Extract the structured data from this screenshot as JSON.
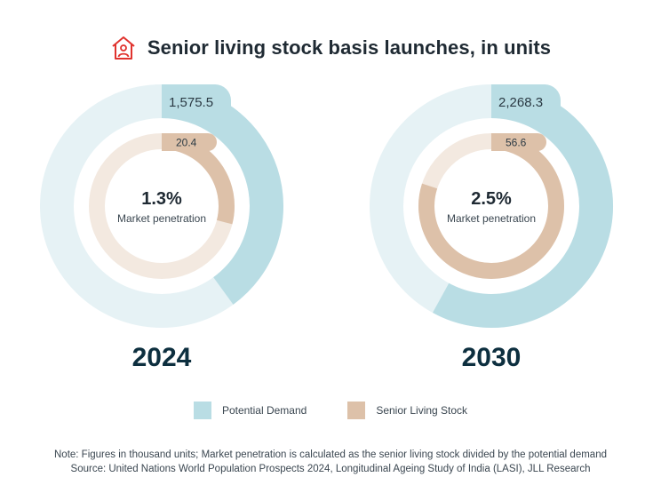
{
  "title": "Senior living stock basis launches, in units",
  "colors": {
    "demand": "#b9dde4",
    "demand_light": "#e6f2f5",
    "stock": "#ddc1a9",
    "stock_light": "#f3e9e0",
    "accent_icon": "#e0332e",
    "year_text": "#0d2f3f"
  },
  "icon": "house-person-icon",
  "legend": {
    "demand": "Potential Demand",
    "stock": "Senior Living Stock"
  },
  "notes": {
    "line1": "Note: Figures in thousand units; Market penetration is calculated as the senior living stock divided by the potential demand",
    "line2": "Source: United Nations World Population Prospects 2024, Longitudinal Ageing Study of India (LASI), JLL Research"
  },
  "chart_data": [
    {
      "type": "donut",
      "year": "2024",
      "potential_demand": 1575.5,
      "potential_demand_label": "1,575.5",
      "senior_living_stock": 20.4,
      "senior_living_stock_label": "20.4",
      "penetration": "1.3%",
      "penetration_caption": "Market penetration",
      "outer_ring_fraction": 0.4,
      "inner_ring_fraction": 0.29
    },
    {
      "type": "donut",
      "year": "2030",
      "potential_demand": 2268.3,
      "potential_demand_label": "2,268.3",
      "senior_living_stock": 56.6,
      "senior_living_stock_label": "56.6",
      "penetration": "2.5%",
      "penetration_caption": "Market penetration",
      "outer_ring_fraction": 0.58,
      "inner_ring_fraction": 0.8
    }
  ]
}
